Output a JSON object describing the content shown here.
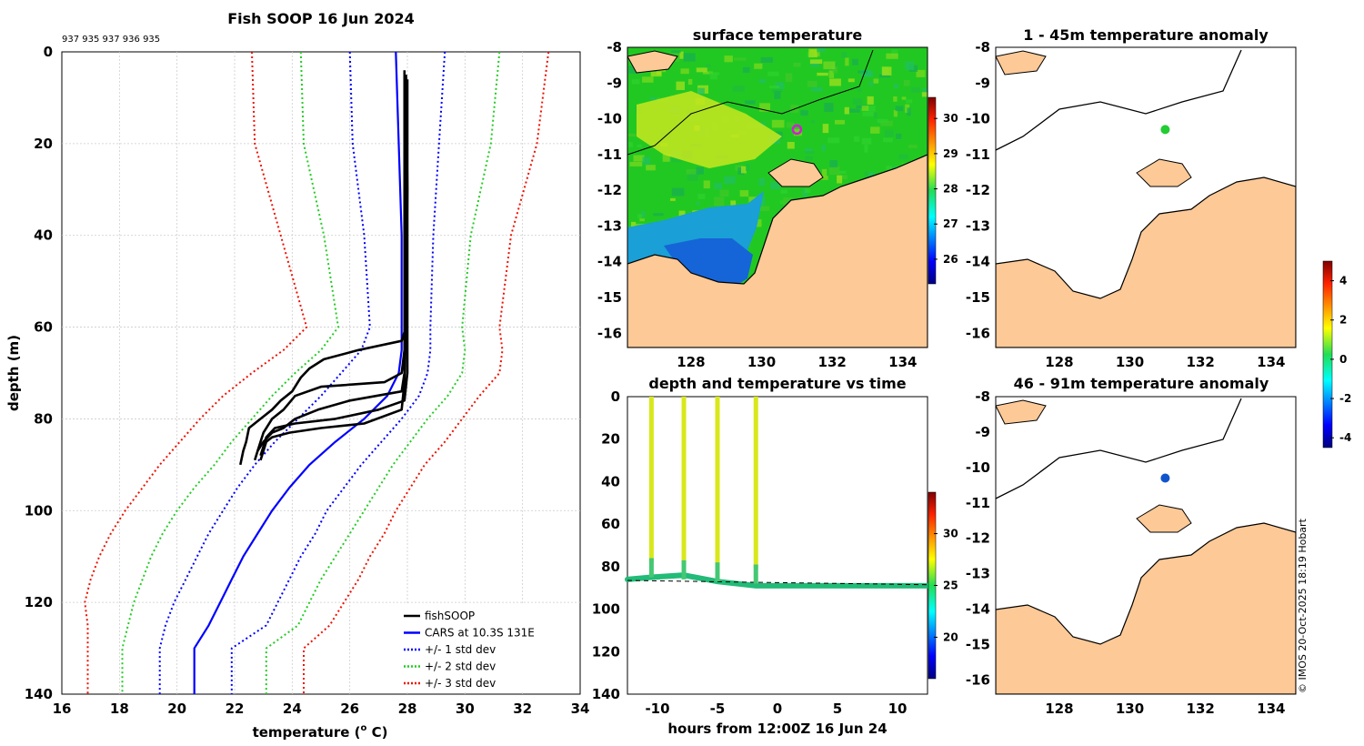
{
  "profile": {
    "title": "Fish SOOP 16 Jun 2024",
    "ids_label": "937 935 937 936 935",
    "xlabel": "temperature (",
    "xlabel_sup": "o",
    "xlabel_tail": " C)",
    "ylabel": "depth (m)",
    "xlim": [
      16,
      34
    ],
    "ylim": [
      0,
      140
    ],
    "xticks": [
      16,
      18,
      20,
      22,
      24,
      26,
      28,
      30,
      32,
      34
    ],
    "yticks": [
      0,
      20,
      40,
      60,
      80,
      100,
      120,
      140
    ],
    "legend": [
      {
        "label": "fishSOOP",
        "color": "#000000",
        "dash": false
      },
      {
        "label": "CARS at 10.3S 131E",
        "color": "#0000ff",
        "dash": false
      },
      {
        "label": "+/- 1 std dev",
        "color": "#0000ff",
        "dash": true
      },
      {
        "label": "+/- 2 std dev",
        "color": "#22cc22",
        "dash": true
      },
      {
        "label": "+/- 3 std dev",
        "color": "#ee1100",
        "dash": true
      }
    ]
  },
  "sst": {
    "title": "surface temperature",
    "xticks": [
      128,
      130,
      132,
      134
    ],
    "yticks": [
      -8,
      -9,
      -10,
      -11,
      -12,
      -13,
      -14,
      -15,
      -16
    ],
    "xlim": [
      126.2,
      134.7
    ],
    "ylim": [
      -16.4,
      -8
    ],
    "colorbar_ticks": [
      30,
      29,
      28,
      27,
      26
    ],
    "colorbar_range": [
      25.3,
      30.6
    ],
    "location": {
      "lon": 131,
      "lat": -10.3
    }
  },
  "time_series": {
    "title": "depth and temperature vs time",
    "xlabel": "hours from 12:00Z 16 Jun 24",
    "xticks": [
      -10,
      -5,
      0,
      5,
      10
    ],
    "yticks": [
      0,
      20,
      40,
      60,
      80,
      100,
      120,
      140
    ],
    "xlim": [
      -12.5,
      12.5
    ],
    "ylim": [
      0,
      140
    ],
    "casts_hours": [
      -10.5,
      -7.8,
      -5,
      -1.8
    ],
    "colorbar_ticks": [
      30,
      25,
      20
    ],
    "colorbar_range": [
      16,
      34
    ]
  },
  "anom_top": {
    "title": "1 - 45m temperature anomaly",
    "xticks": [
      128,
      130,
      132,
      134
    ],
    "yticks": [
      -8,
      -9,
      -10,
      -11,
      -12,
      -13,
      -14,
      -15,
      -16
    ],
    "value_color": "#22cc33"
  },
  "anom_bottom": {
    "title": "46 - 91m temperature anomaly",
    "xticks": [
      128,
      130,
      132,
      134
    ],
    "yticks": [
      -8,
      -9,
      -10,
      -11,
      -12,
      -13,
      -14,
      -15,
      -16
    ],
    "value_color": "#1155cc"
  },
  "anom_colorbar": {
    "ticks": [
      4,
      2,
      0,
      -2,
      -4
    ],
    "range": [
      -4.5,
      5
    ]
  },
  "credit": "© IMOS 20-Oct-2025 18:19 Hobart",
  "chart_data": [
    {
      "type": "line",
      "title": "Fish SOOP 16 Jun 2024",
      "xlabel": "temperature (o C)",
      "ylabel": "depth (m)",
      "xlim": [
        16,
        34
      ],
      "ylim": [
        0,
        140
      ],
      "series": [
        {
          "name": "CARS at 10.3S 131E",
          "style": "solid",
          "points": [
            [
              27.6,
              0
            ],
            [
              27.7,
              20
            ],
            [
              27.8,
              40
            ],
            [
              27.8,
              60
            ],
            [
              27.8,
              65
            ],
            [
              27.7,
              70
            ],
            [
              27.3,
              75
            ],
            [
              26.5,
              80
            ],
            [
              25.5,
              85
            ],
            [
              24.6,
              90
            ],
            [
              23.9,
              95
            ],
            [
              23.3,
              100
            ],
            [
              22.8,
              105
            ],
            [
              22.3,
              110
            ],
            [
              21.9,
              115
            ],
            [
              21.5,
              120
            ],
            [
              21.1,
              125
            ],
            [
              20.6,
              130
            ],
            [
              20.6,
              140
            ]
          ]
        },
        {
          "name": "-1 std dev",
          "style": "dotted",
          "points": [
            [
              26.0,
              0
            ],
            [
              26.1,
              20
            ],
            [
              26.5,
              40
            ],
            [
              26.7,
              60
            ],
            [
              26.4,
              65
            ],
            [
              25.7,
              70
            ],
            [
              25.0,
              75
            ],
            [
              24.2,
              80
            ],
            [
              23.4,
              85
            ],
            [
              22.7,
              90
            ],
            [
              22.1,
              95
            ],
            [
              21.6,
              100
            ],
            [
              21.1,
              105
            ],
            [
              20.7,
              110
            ],
            [
              20.3,
              115
            ],
            [
              19.9,
              120
            ],
            [
              19.6,
              125
            ],
            [
              19.4,
              130
            ],
            [
              19.4,
              140
            ]
          ]
        },
        {
          "name": "+1 std dev",
          "style": "dotted",
          "points": [
            [
              29.3,
              0
            ],
            [
              29.1,
              20
            ],
            [
              28.9,
              40
            ],
            [
              28.8,
              60
            ],
            [
              28.8,
              65
            ],
            [
              28.7,
              70
            ],
            [
              28.4,
              75
            ],
            [
              27.8,
              80
            ],
            [
              27.1,
              85
            ],
            [
              26.4,
              90
            ],
            [
              25.8,
              95
            ],
            [
              25.2,
              100
            ],
            [
              24.8,
              105
            ],
            [
              24.3,
              110
            ],
            [
              23.9,
              115
            ],
            [
              23.5,
              120
            ],
            [
              23.1,
              125
            ],
            [
              21.9,
              130
            ],
            [
              21.9,
              140
            ]
          ]
        },
        {
          "name": "-2 std dev",
          "style": "dotted",
          "points": [
            [
              24.3,
              0
            ],
            [
              24.4,
              20
            ],
            [
              25.1,
              40
            ],
            [
              25.6,
              60
            ],
            [
              25.0,
              65
            ],
            [
              24.1,
              70
            ],
            [
              23.3,
              75
            ],
            [
              22.6,
              80
            ],
            [
              21.9,
              85
            ],
            [
              21.3,
              90
            ],
            [
              20.6,
              95
            ],
            [
              20.0,
              100
            ],
            [
              19.5,
              105
            ],
            [
              19.1,
              110
            ],
            [
              18.8,
              115
            ],
            [
              18.5,
              120
            ],
            [
              18.3,
              125
            ],
            [
              18.1,
              130
            ],
            [
              18.1,
              140
            ]
          ]
        },
        {
          "name": "+2 std dev",
          "style": "dotted",
          "points": [
            [
              31.2,
              0
            ],
            [
              30.9,
              20
            ],
            [
              30.2,
              40
            ],
            [
              29.9,
              60
            ],
            [
              30.0,
              65
            ],
            [
              29.9,
              70
            ],
            [
              29.4,
              75
            ],
            [
              28.7,
              80
            ],
            [
              28.1,
              85
            ],
            [
              27.5,
              90
            ],
            [
              27.0,
              95
            ],
            [
              26.5,
              100
            ],
            [
              26.0,
              105
            ],
            [
              25.5,
              110
            ],
            [
              25.0,
              115
            ],
            [
              24.6,
              120
            ],
            [
              24.2,
              125
            ],
            [
              23.1,
              130
            ],
            [
              23.1,
              140
            ]
          ]
        },
        {
          "name": "-3 std dev",
          "style": "dotted",
          "points": [
            [
              22.6,
              0
            ],
            [
              22.7,
              20
            ],
            [
              23.6,
              40
            ],
            [
              24.5,
              60
            ],
            [
              23.7,
              65
            ],
            [
              22.6,
              70
            ],
            [
              21.6,
              75
            ],
            [
              20.8,
              80
            ],
            [
              20.1,
              85
            ],
            [
              19.4,
              90
            ],
            [
              18.8,
              95
            ],
            [
              18.2,
              100
            ],
            [
              17.7,
              105
            ],
            [
              17.3,
              110
            ],
            [
              17.0,
              115
            ],
            [
              16.8,
              120
            ],
            [
              16.9,
              125
            ],
            [
              16.9,
              130
            ],
            [
              16.9,
              140
            ]
          ]
        },
        {
          "name": "+3 std dev",
          "style": "dotted",
          "points": [
            [
              32.9,
              0
            ],
            [
              32.5,
              20
            ],
            [
              31.6,
              40
            ],
            [
              31.2,
              60
            ],
            [
              31.3,
              65
            ],
            [
              31.2,
              70
            ],
            [
              30.5,
              75
            ],
            [
              29.9,
              80
            ],
            [
              29.3,
              85
            ],
            [
              28.6,
              90
            ],
            [
              28.1,
              95
            ],
            [
              27.6,
              100
            ],
            [
              27.2,
              105
            ],
            [
              26.7,
              110
            ],
            [
              26.3,
              115
            ],
            [
              25.8,
              120
            ],
            [
              25.3,
              125
            ],
            [
              24.4,
              130
            ],
            [
              24.4,
              140
            ]
          ]
        },
        {
          "name": "fishSOOP cast 1",
          "points": [
            [
              27.9,
              4
            ],
            [
              27.9,
              30
            ],
            [
              27.9,
              60
            ],
            [
              27.9,
              65
            ],
            [
              27.8,
              70
            ],
            [
              27.2,
              72
            ],
            [
              25.0,
              73
            ],
            [
              24.1,
              75
            ],
            [
              23.7,
              78
            ],
            [
              23.3,
              80
            ],
            [
              23.0,
              83
            ],
            [
              22.9,
              85
            ],
            [
              22.8,
              87
            ]
          ]
        },
        {
          "name": "fishSOOP cast 2",
          "points": [
            [
              27.95,
              5
            ],
            [
              28.0,
              30
            ],
            [
              27.95,
              60
            ],
            [
              27.8,
              63
            ],
            [
              26.3,
              65
            ],
            [
              25.1,
              67
            ],
            [
              24.6,
              69
            ],
            [
              24.3,
              71
            ],
            [
              24.0,
              74
            ],
            [
              23.6,
              76
            ],
            [
              23.3,
              78
            ],
            [
              22.9,
              80
            ],
            [
              22.5,
              82
            ],
            [
              22.4,
              85
            ],
            [
              22.3,
              87
            ],
            [
              22.2,
              90
            ]
          ]
        },
        {
          "name": "fishSOOP cast 3",
          "points": [
            [
              27.9,
              5
            ],
            [
              27.9,
              30
            ],
            [
              27.9,
              60
            ],
            [
              27.9,
              70
            ],
            [
              27.8,
              74
            ],
            [
              26.0,
              76
            ],
            [
              24.9,
              78
            ],
            [
              24.1,
              80
            ],
            [
              23.7,
              82
            ],
            [
              23.3,
              83
            ],
            [
              23.0,
              85
            ],
            [
              22.8,
              87
            ],
            [
              22.7,
              89
            ]
          ]
        },
        {
          "name": "fishSOOP cast 4",
          "points": [
            [
              28.0,
              6
            ],
            [
              28.0,
              30
            ],
            [
              28.0,
              60
            ],
            [
              28.0,
              70
            ],
            [
              27.9,
              76
            ],
            [
              27.0,
              78
            ],
            [
              25.5,
              80
            ],
            [
              24.1,
              81
            ],
            [
              23.4,
              82
            ],
            [
              23.1,
              84
            ],
            [
              23.0,
              86
            ],
            [
              22.9,
              88
            ]
          ]
        },
        {
          "name": "fishSOOP cast 5",
          "points": [
            [
              27.95,
              5
            ],
            [
              27.95,
              30
            ],
            [
              27.95,
              60
            ],
            [
              27.9,
              72
            ],
            [
              27.8,
              78
            ],
            [
              26.5,
              81
            ],
            [
              25.0,
              82
            ],
            [
              23.9,
              83
            ],
            [
              23.3,
              84
            ],
            [
              23.1,
              85
            ],
            [
              23.0,
              87
            ],
            [
              22.9,
              89
            ]
          ]
        }
      ]
    },
    {
      "type": "heatmap",
      "title": "surface temperature",
      "xlabel": "",
      "ylabel": "",
      "x_range": [
        126.2,
        134.7
      ],
      "y_range": [
        -16.4,
        -8
      ],
      "color_range": [
        25.3,
        30.6
      ],
      "marker": {
        "lon": 131,
        "lat": -10.3
      }
    },
    {
      "type": "scatter",
      "title": "depth and temperature vs time",
      "xlabel": "hours from 12:00Z 16 Jun 24",
      "ylabel": "",
      "xlim": [
        -12.5,
        12.5
      ],
      "ylim": [
        0,
        140
      ],
      "casts": [
        -10.5,
        -7.8,
        -5,
        -1.8
      ],
      "bottom_depth": [
        [
          -12.5,
          86
        ],
        [
          -10.5,
          85
        ],
        [
          -7.8,
          84
        ],
        [
          -5,
          87
        ],
        [
          -1.8,
          89
        ],
        [
          12.5,
          89
        ]
      ]
    },
    {
      "type": "scatter",
      "title": "1 - 45m temperature anomaly",
      "points": [
        {
          "lon": 131,
          "lat": -10.3,
          "anomaly": 0.2
        }
      ]
    },
    {
      "type": "scatter",
      "title": "46 - 91m temperature anomaly",
      "points": [
        {
          "lon": 131,
          "lat": -10.3,
          "anomaly": -3.2
        }
      ]
    }
  ]
}
